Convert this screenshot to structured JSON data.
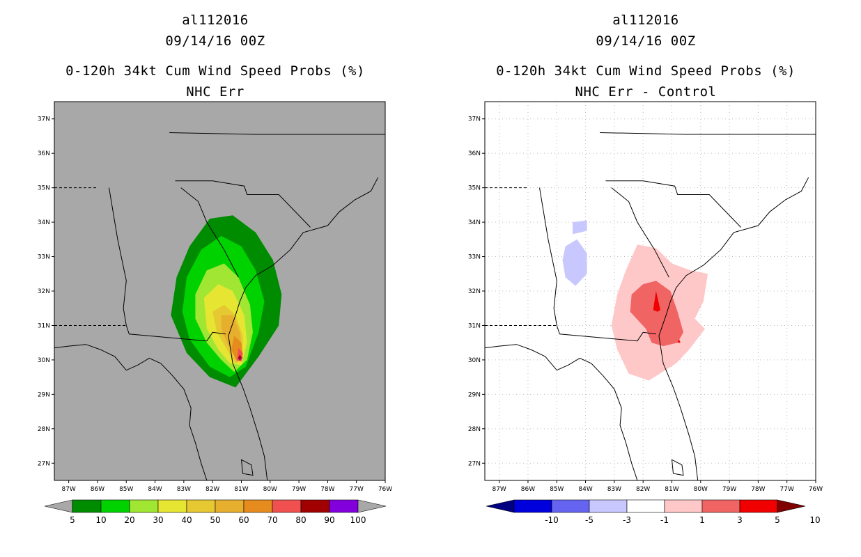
{
  "colors": {
    "map_bg_left": "#a8a8a8",
    "map_bg_right": "#ffffff",
    "grid": "#bbbbbb"
  },
  "panels": [
    {
      "id": "left",
      "title_line1": "al112016",
      "title_line2": "09/14/16 00Z",
      "title_line3": "0-120h 34kt Cum Wind Speed Probs (%)",
      "title_line4": "NHC Err"
    },
    {
      "id": "right",
      "title_line1": "al112016",
      "title_line2": "09/14/16 00Z",
      "title_line3": "0-120h 34kt Cum Wind Speed Probs (%)",
      "title_line4": "NHC Err - Control"
    }
  ],
  "chart_data": [
    {
      "type": "heatmap",
      "title": "0-120h 34kt Cum Wind Speed Probs (%)",
      "subtitle": "NHC Err",
      "xlim": [
        -87.5,
        -76
      ],
      "ylim": [
        26.5,
        37.5
      ],
      "x_ticks": [
        "87W",
        "86W",
        "85W",
        "84W",
        "83W",
        "82W",
        "81W",
        "80W",
        "79W",
        "78W",
        "77W",
        "76W"
      ],
      "y_ticks": [
        "27N",
        "28N",
        "29N",
        "30N",
        "31N",
        "32N",
        "33N",
        "34N",
        "35N",
        "36N",
        "37N"
      ],
      "colorbar": {
        "labels": [
          "5",
          "10",
          "20",
          "30",
          "40",
          "50",
          "60",
          "70",
          "80",
          "90",
          "100"
        ],
        "colors": [
          "#008c00",
          "#00d200",
          "#a0e632",
          "#e6e632",
          "#e6c832",
          "#e6af2d",
          "#e68c1e",
          "#f05050",
          "#a00000",
          "#8200dc"
        ],
        "under_color": "#a8a8a8",
        "over_color": "#a8a8a8"
      },
      "contours": [
        {
          "level": 5,
          "color": "#008c00",
          "polygon": [
            [
              -83.25,
              32.4
            ],
            [
              -82.8,
              33.3
            ],
            [
              -82.1,
              34.1
            ],
            [
              -81.3,
              34.2
            ],
            [
              -80.5,
              33.7
            ],
            [
              -79.9,
              32.9
            ],
            [
              -79.6,
              31.9
            ],
            [
              -79.7,
              31.0
            ],
            [
              -80.4,
              30.1
            ],
            [
              -81.2,
              29.2
            ],
            [
              -82.1,
              29.5
            ],
            [
              -82.9,
              30.2
            ],
            [
              -83.45,
              31.3
            ]
          ]
        },
        {
          "level": 10,
          "color": "#00d200",
          "polygon": [
            [
              -82.9,
              32.4
            ],
            [
              -82.4,
              33.2
            ],
            [
              -81.7,
              33.6
            ],
            [
              -81.0,
              33.3
            ],
            [
              -80.5,
              32.6
            ],
            [
              -80.2,
              31.7
            ],
            [
              -80.4,
              30.8
            ],
            [
              -80.85,
              29.8
            ],
            [
              -81.4,
              29.5
            ],
            [
              -82.1,
              29.8
            ],
            [
              -82.8,
              30.6
            ],
            [
              -83.05,
              31.4
            ]
          ]
        },
        {
          "level": 20,
          "color": "#a0e632",
          "polygon": [
            [
              -82.6,
              31.9
            ],
            [
              -82.2,
              32.6
            ],
            [
              -81.6,
              32.8
            ],
            [
              -81.1,
              32.4
            ],
            [
              -80.7,
              31.6
            ],
            [
              -80.6,
              30.8
            ],
            [
              -80.8,
              30.0
            ],
            [
              -81.25,
              29.65
            ],
            [
              -81.7,
              30.0
            ],
            [
              -82.2,
              30.5
            ],
            [
              -82.6,
              31.2
            ]
          ]
        },
        {
          "level": 30,
          "color": "#e6e632",
          "polygon": [
            [
              -82.3,
              31.8
            ],
            [
              -81.8,
              32.2
            ],
            [
              -81.3,
              32.0
            ],
            [
              -80.9,
              31.3
            ],
            [
              -80.8,
              30.5
            ],
            [
              -81.0,
              29.85
            ],
            [
              -81.4,
              29.9
            ],
            [
              -81.8,
              30.3
            ],
            [
              -82.2,
              30.9
            ]
          ]
        },
        {
          "level": 40,
          "color": "#e6c832",
          "polygon": [
            [
              -82.0,
              31.4
            ],
            [
              -81.6,
              31.6
            ],
            [
              -81.2,
              31.3
            ],
            [
              -80.95,
              30.7
            ],
            [
              -80.95,
              30.0
            ],
            [
              -81.2,
              29.9
            ],
            [
              -81.5,
              30.3
            ],
            [
              -81.85,
              30.8
            ]
          ]
        },
        {
          "level": 50,
          "color": "#e6af2d",
          "polygon": [
            [
              -81.7,
              31.3
            ],
            [
              -81.3,
              31.3
            ],
            [
              -81.05,
              30.8
            ],
            [
              -80.95,
              30.1
            ],
            [
              -81.15,
              29.95
            ],
            [
              -81.45,
              30.4
            ],
            [
              -81.7,
              30.9
            ]
          ]
        },
        {
          "level": 60,
          "color": "#e68c1e",
          "polygon": [
            [
              -81.25,
              30.7
            ],
            [
              -81.0,
              30.5
            ],
            [
              -80.95,
              30.05
            ],
            [
              -81.15,
              29.95
            ],
            [
              -81.35,
              30.3
            ]
          ]
        },
        {
          "level": 70,
          "color": "#f05050",
          "polygon": [
            [
              -81.1,
              30.35
            ],
            [
              -80.95,
              30.2
            ],
            [
              -81.0,
              29.95
            ],
            [
              -81.15,
              30.0
            ]
          ]
        },
        {
          "level": 80,
          "color": "#a00000",
          "polygon": [
            [
              -81.05,
              30.15
            ],
            [
              -80.98,
              30.05
            ],
            [
              -81.05,
              29.98
            ],
            [
              -81.12,
              30.05
            ]
          ]
        },
        {
          "level": 100,
          "color": "#8200dc",
          "polygon": [
            [
              -81.05,
              30.08
            ],
            [
              -81.01,
              30.04
            ],
            [
              -81.05,
              30.0
            ],
            [
              -81.09,
              30.04
            ]
          ]
        }
      ]
    },
    {
      "type": "heatmap",
      "title": "0-120h 34kt Cum Wind Speed Probs (%)",
      "subtitle": "NHC Err - Control",
      "xlim": [
        -87.5,
        -76
      ],
      "ylim": [
        26.5,
        37.5
      ],
      "x_ticks": [
        "87W",
        "86W",
        "85W",
        "84W",
        "83W",
        "82W",
        "81W",
        "80W",
        "79W",
        "78W",
        "77W",
        "76W"
      ],
      "y_ticks": [
        "27N",
        "28N",
        "29N",
        "30N",
        "31N",
        "32N",
        "33N",
        "34N",
        "35N",
        "36N",
        "37N"
      ],
      "colorbar": {
        "labels": [
          "-10",
          "-5",
          "-3",
          "-1",
          "1",
          "3",
          "5",
          "10"
        ],
        "colors": [
          "#0000dc",
          "#6464f0",
          "#c8c8ff",
          "#ffffff",
          "#ffc8c8",
          "#f06464",
          "#f00000"
        ],
        "under_color": "#000080",
        "over_color": "#800000"
      },
      "contours": [
        {
          "level": -3,
          "color": "#c8c8ff",
          "polygon": [
            [
              -84.7,
              33.3
            ],
            [
              -84.3,
              33.5
            ],
            [
              -83.95,
              33.1
            ],
            [
              -83.95,
              32.5
            ],
            [
              -84.35,
              32.15
            ],
            [
              -84.7,
              32.4
            ],
            [
              -84.8,
              32.9
            ]
          ]
        },
        {
          "level": -3,
          "color": "#c8c8ff",
          "polygon": [
            [
              -84.45,
              34.0
            ],
            [
              -83.95,
              34.05
            ],
            [
              -83.95,
              33.75
            ],
            [
              -84.45,
              33.65
            ]
          ]
        },
        {
          "level": 1,
          "color": "#ffc8c8",
          "polygon": [
            [
              -82.2,
              33.35
            ],
            [
              -81.55,
              33.25
            ],
            [
              -81.0,
              32.8
            ],
            [
              -80.35,
              32.6
            ],
            [
              -79.75,
              32.5
            ],
            [
              -79.9,
              31.7
            ],
            [
              -80.2,
              31.2
            ],
            [
              -79.85,
              30.9
            ],
            [
              -80.4,
              30.3
            ],
            [
              -80.85,
              29.9
            ],
            [
              -81.8,
              29.4
            ],
            [
              -82.5,
              29.6
            ],
            [
              -82.9,
              30.3
            ],
            [
              -83.1,
              31.0
            ],
            [
              -82.9,
              31.9
            ],
            [
              -82.6,
              32.6
            ]
          ]
        },
        {
          "level": 3,
          "color": "#f06464",
          "polygon": [
            [
              -82.0,
              32.2
            ],
            [
              -81.55,
              32.3
            ],
            [
              -81.05,
              32.0
            ],
            [
              -80.8,
              31.4
            ],
            [
              -80.6,
              30.8
            ],
            [
              -80.8,
              30.5
            ],
            [
              -81.3,
              30.4
            ],
            [
              -81.7,
              30.5
            ],
            [
              -81.9,
              30.9
            ],
            [
              -82.45,
              31.4
            ],
            [
              -82.4,
              31.9
            ]
          ]
        },
        {
          "level": 5,
          "color": "#f00000",
          "polygon": [
            [
              -81.55,
              32.0
            ],
            [
              -81.4,
              31.45
            ],
            [
              -81.5,
              31.4
            ],
            [
              -81.65,
              31.45
            ]
          ]
        },
        {
          "level": 5,
          "color": "#f00000",
          "polygon": [
            [
              -80.75,
              30.6
            ],
            [
              -80.7,
              30.5
            ],
            [
              -80.8,
              30.5
            ]
          ]
        }
      ]
    }
  ]
}
